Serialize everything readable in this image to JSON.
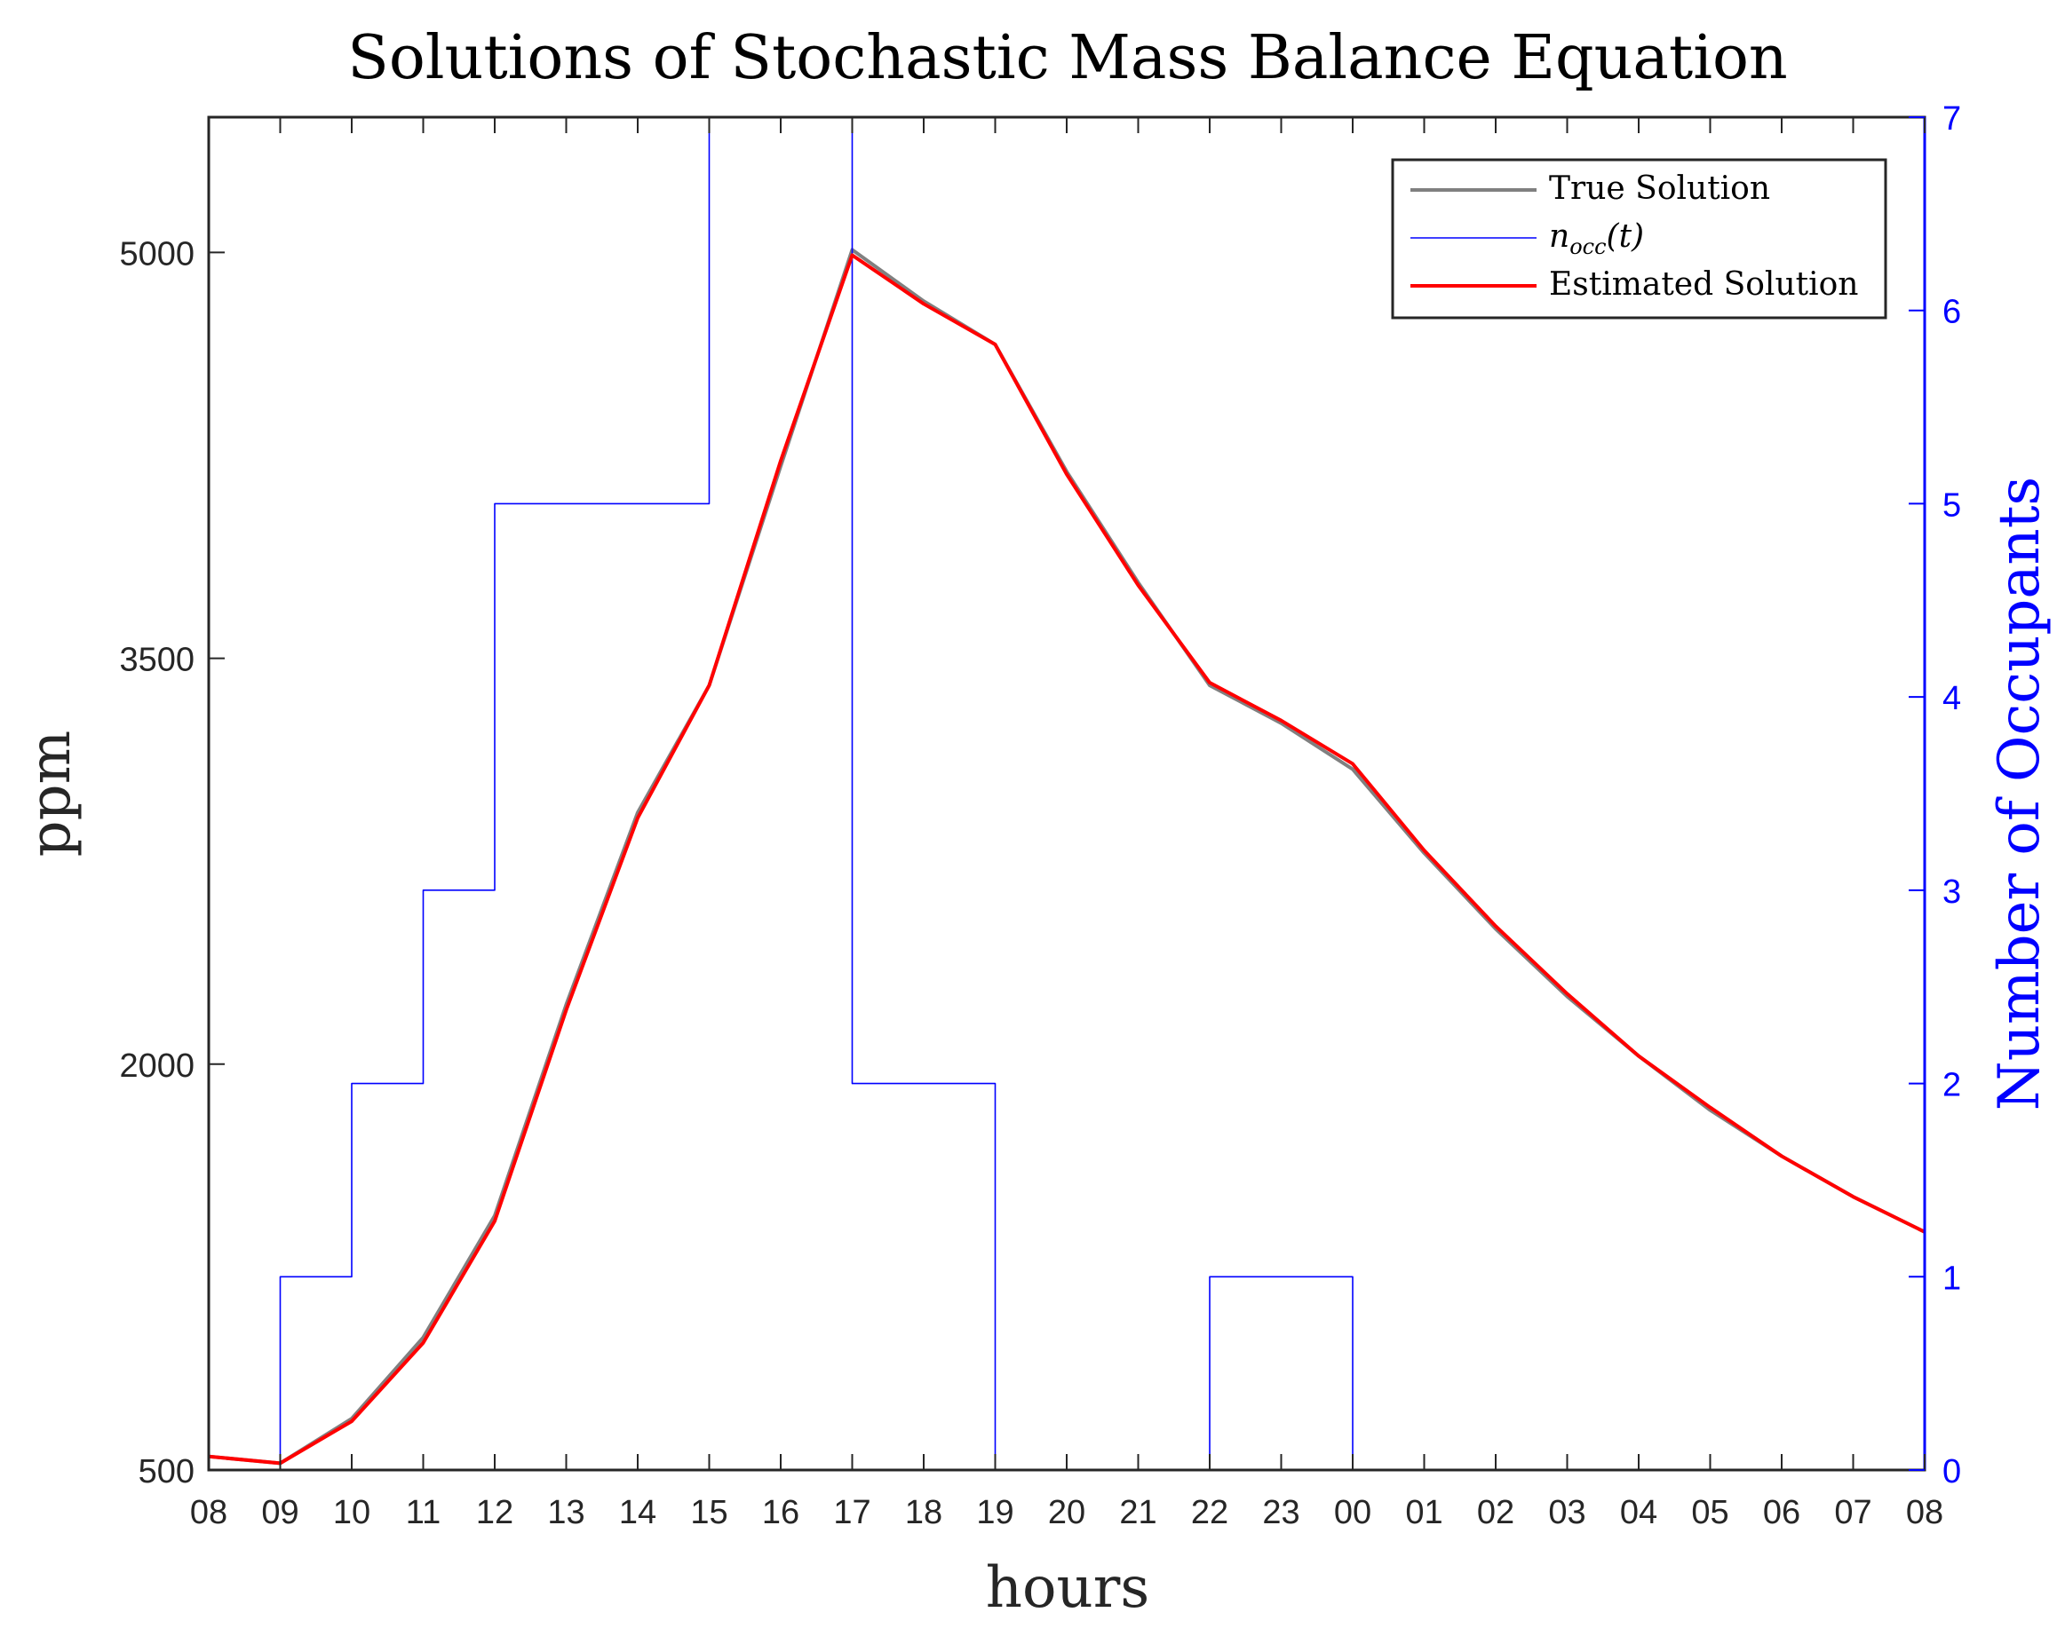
{
  "chart_data": {
    "type": "line",
    "title": "Solutions of Stochastic Mass Balance Equation",
    "xlabel": "hours",
    "ylabel": "ppm",
    "y2label": "Number of Occupants",
    "x_tick_labels": [
      "08",
      "09",
      "10",
      "11",
      "12",
      "13",
      "14",
      "15",
      "16",
      "17",
      "18",
      "19",
      "20",
      "21",
      "22",
      "23",
      "00",
      "01",
      "02",
      "03",
      "04",
      "05",
      "06",
      "07",
      "08"
    ],
    "xlim": [
      0,
      24
    ],
    "ylim": [
      500,
      5500
    ],
    "yticks": [
      500,
      2000,
      3500,
      5000
    ],
    "y2lim": [
      0,
      7
    ],
    "y2ticks": [
      0,
      1,
      2,
      3,
      4,
      5,
      6,
      7
    ],
    "legend_position": "top-right",
    "series": [
      {
        "name": "True Solution",
        "axis": "left",
        "color": "#808080",
        "x": [
          0,
          1,
          2,
          3,
          4,
          5,
          6,
          7,
          8,
          9,
          10,
          11,
          12,
          13,
          14,
          15,
          16,
          17,
          18,
          19,
          20,
          21,
          22,
          23,
          24
        ],
        "y": [
          550,
          525,
          690,
          990,
          1440,
          2220,
          2930,
          3400,
          4210,
          5010,
          4820,
          4660,
          4190,
          3780,
          3400,
          3260,
          3090,
          2780,
          2500,
          2250,
          2030,
          1830,
          1660,
          1510,
          1380
        ]
      },
      {
        "name": "n_occ(t)",
        "axis": "right",
        "color": "#0000ff",
        "step": true,
        "x": [
          0,
          1,
          2,
          3,
          4,
          7,
          9,
          11,
          14,
          16,
          24
        ],
        "y": [
          0,
          1,
          2,
          3,
          5,
          7,
          2,
          0,
          1,
          0,
          0
        ]
      },
      {
        "name": "Estimated Solution",
        "axis": "left",
        "color": "#ff0000",
        "x": [
          0,
          1,
          2,
          3,
          4,
          5,
          6,
          7,
          8,
          9,
          10,
          11,
          12,
          13,
          14,
          15,
          16,
          17,
          18,
          19,
          20,
          21,
          22,
          23,
          24
        ],
        "y": [
          550,
          525,
          680,
          970,
          1420,
          2200,
          2910,
          3400,
          4230,
          4990,
          4810,
          4660,
          4180,
          3770,
          3410,
          3270,
          3110,
          2790,
          2510,
          2260,
          2030,
          1840,
          1660,
          1510,
          1380
        ]
      }
    ],
    "legend_labels": [
      "True Solution",
      "n",
      "occ",
      "(t)",
      "Estimated Solution"
    ]
  },
  "colors": {
    "true_solution": "#808080",
    "occupants": "#0000ff",
    "estimated": "#ff0000",
    "right_axis": "#0000ff"
  }
}
